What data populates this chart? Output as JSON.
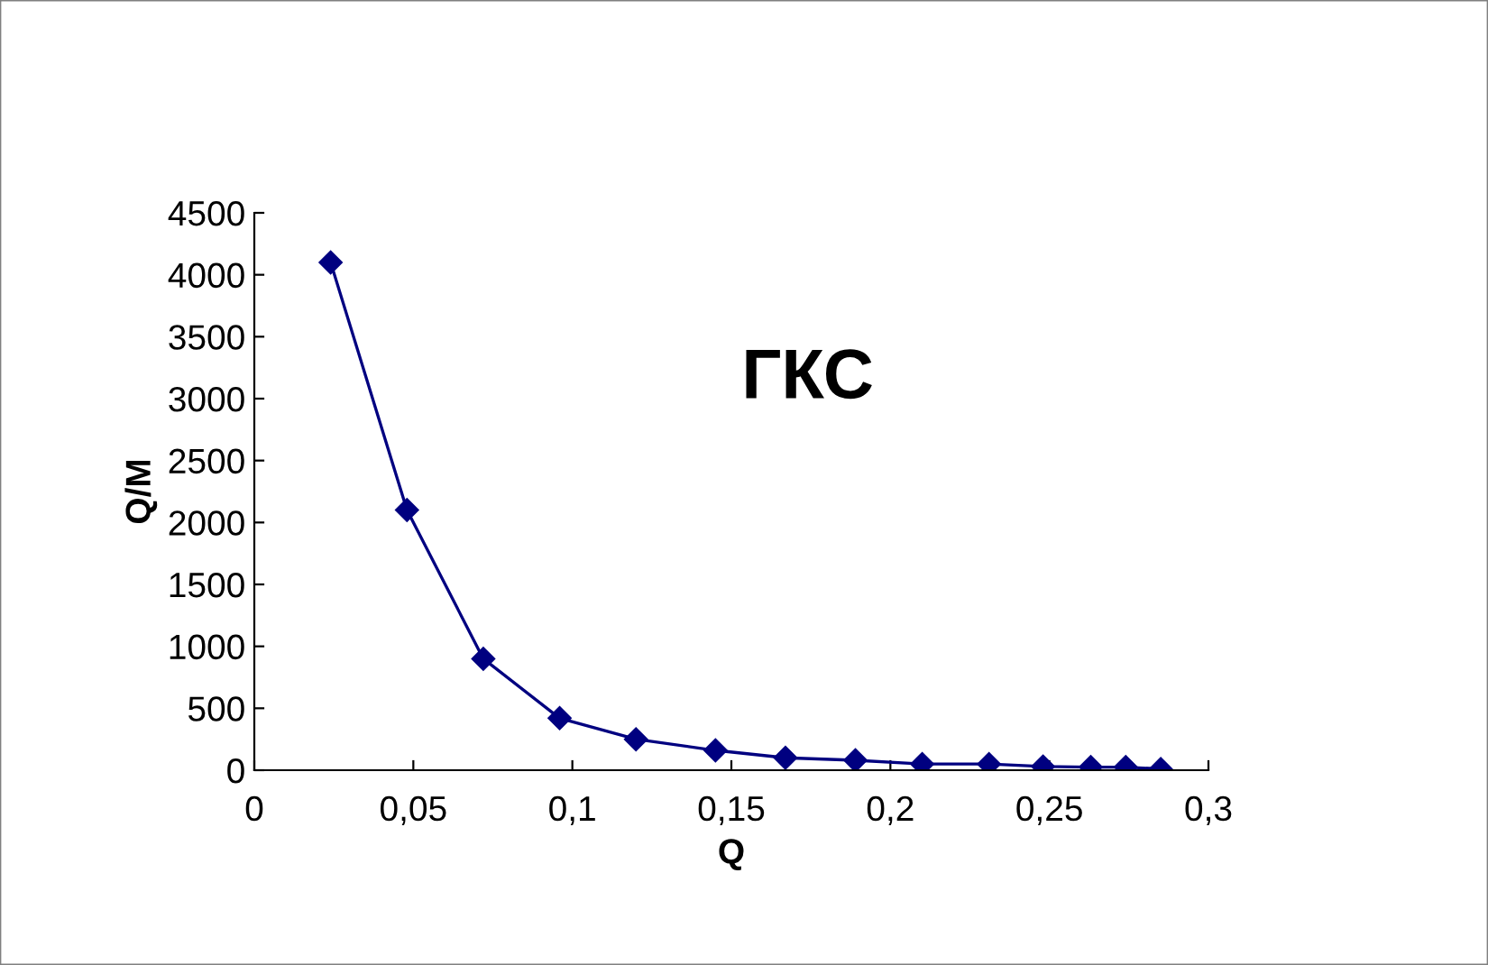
{
  "chart_data": {
    "type": "line",
    "title": "ГКС",
    "xlabel": "Q",
    "ylabel": "Q/M",
    "x": [
      0.024,
      0.048,
      0.072,
      0.096,
      0.12,
      0.145,
      0.167,
      0.189,
      0.21,
      0.231,
      0.248,
      0.263,
      0.274,
      0.285
    ],
    "series": [
      {
        "color": "#000080",
        "values": [
          4100,
          2100,
          900,
          420,
          250,
          160,
          100,
          80,
          50,
          50,
          30,
          25,
          25,
          10
        ]
      }
    ],
    "xlim": [
      0,
      0.3
    ],
    "xticks": [
      0,
      {
        "value": 0.05,
        "label": "0,05"
      },
      {
        "value": 0.1,
        "label": "0,1"
      },
      {
        "value": 0.15,
        "label": "0,15"
      },
      {
        "value": 0.2,
        "label": "0,2"
      },
      {
        "value": 0.25,
        "label": "0,25"
      },
      {
        "value": 0.3,
        "label": "0,3"
      }
    ],
    "ylim": [
      0,
      4500
    ],
    "yticks": [
      0,
      500,
      1000,
      1500,
      2000,
      2500,
      3000,
      3500,
      4000,
      4500
    ],
    "marker": "diamond",
    "line_style": "solid",
    "grid": false,
    "legend": false
  }
}
